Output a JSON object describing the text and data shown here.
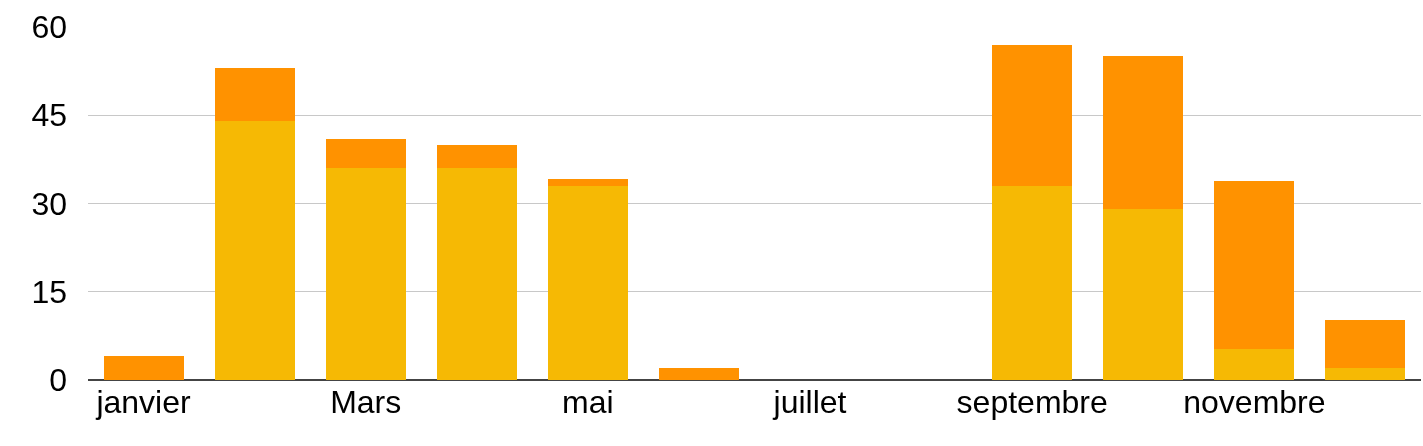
{
  "chart_data": {
    "type": "bar",
    "stacked": true,
    "categories": [
      "janvier",
      null,
      "Mars",
      null,
      "mai",
      null,
      "juillet",
      null,
      "septembre",
      null,
      "novembre",
      null
    ],
    "series": [
      {
        "color": "#f6b904",
        "values": [
          0,
          44,
          36,
          36,
          33,
          0,
          0,
          0,
          33,
          29,
          5.3,
          2
        ]
      },
      {
        "color": "#ff9200",
        "values": [
          4,
          9,
          5,
          4,
          1.2,
          2,
          0,
          0,
          24,
          26,
          28.5,
          8.2
        ]
      }
    ],
    "ylim": [
      0,
      60
    ],
    "yticks": [
      0,
      15,
      30,
      45,
      60
    ],
    "grid": "y"
  }
}
